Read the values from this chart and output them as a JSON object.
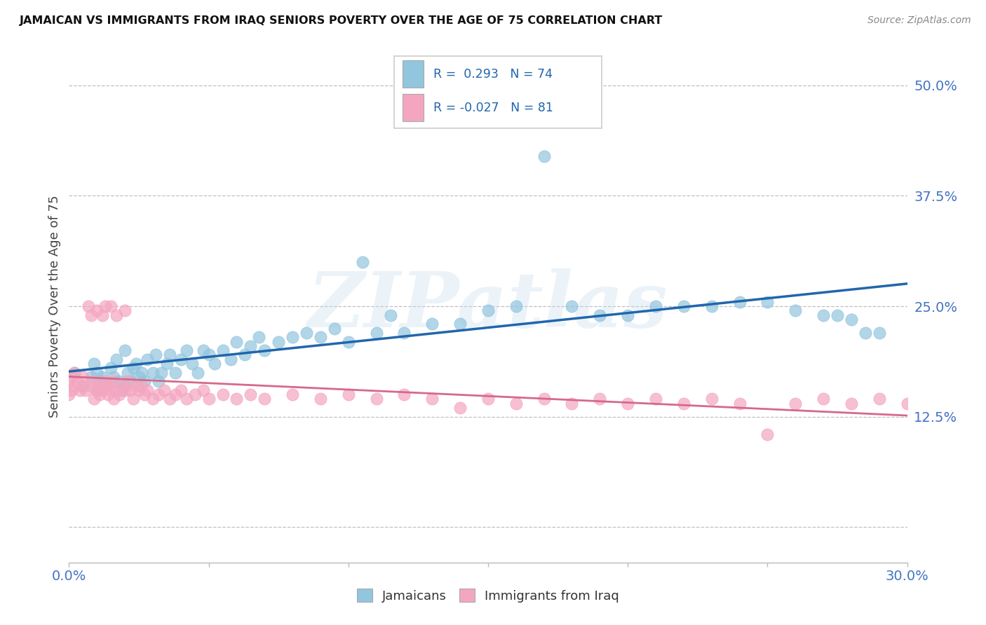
{
  "title": "JAMAICAN VS IMMIGRANTS FROM IRAQ SENIORS POVERTY OVER THE AGE OF 75 CORRELATION CHART",
  "source": "Source: ZipAtlas.com",
  "ylabel_label": "Seniors Poverty Over the Age of 75",
  "xlim": [
    0.0,
    0.3
  ],
  "ylim": [
    -0.04,
    0.54
  ],
  "r_jamaican": 0.293,
  "n_jamaican": 74,
  "r_iraqi": -0.027,
  "n_iraqi": 81,
  "jamaican_color": "#92c5de",
  "iraqi_color": "#f4a6c0",
  "trendline_jamaican_color": "#2166ac",
  "trendline_iraqi_color": "#d6698a",
  "watermark": "ZIPatlas",
  "legend_jamaican": "Jamaicans",
  "legend_iraqi": "Immigrants from Iraq",
  "jamaican_x": [
    0.002,
    0.005,
    0.008,
    0.009,
    0.01,
    0.01,
    0.011,
    0.012,
    0.013,
    0.015,
    0.016,
    0.017,
    0.018,
    0.019,
    0.02,
    0.02,
    0.021,
    0.022,
    0.023,
    0.024,
    0.025,
    0.026,
    0.027,
    0.028,
    0.03,
    0.031,
    0.032,
    0.033,
    0.035,
    0.036,
    0.038,
    0.04,
    0.042,
    0.044,
    0.046,
    0.048,
    0.05,
    0.052,
    0.055,
    0.058,
    0.06,
    0.063,
    0.065,
    0.068,
    0.07,
    0.075,
    0.08,
    0.085,
    0.09,
    0.095,
    0.1,
    0.105,
    0.11,
    0.115,
    0.12,
    0.13,
    0.14,
    0.15,
    0.16,
    0.17,
    0.18,
    0.19,
    0.2,
    0.21,
    0.22,
    0.23,
    0.24,
    0.25,
    0.26,
    0.27,
    0.275,
    0.28,
    0.285,
    0.29
  ],
  "jamaican_y": [
    0.175,
    0.16,
    0.17,
    0.185,
    0.155,
    0.175,
    0.165,
    0.17,
    0.16,
    0.18,
    0.17,
    0.19,
    0.165,
    0.155,
    0.16,
    0.2,
    0.175,
    0.165,
    0.18,
    0.185,
    0.17,
    0.175,
    0.165,
    0.19,
    0.175,
    0.195,
    0.165,
    0.175,
    0.185,
    0.195,
    0.175,
    0.19,
    0.2,
    0.185,
    0.175,
    0.2,
    0.195,
    0.185,
    0.2,
    0.19,
    0.21,
    0.195,
    0.205,
    0.215,
    0.2,
    0.21,
    0.215,
    0.22,
    0.215,
    0.225,
    0.21,
    0.3,
    0.22,
    0.24,
    0.22,
    0.23,
    0.23,
    0.245,
    0.25,
    0.42,
    0.25,
    0.24,
    0.24,
    0.25,
    0.25,
    0.25,
    0.255,
    0.255,
    0.245,
    0.24,
    0.24,
    0.235,
    0.22,
    0.22
  ],
  "iraqi_x": [
    0.0,
    0.0,
    0.001,
    0.001,
    0.002,
    0.002,
    0.003,
    0.004,
    0.005,
    0.005,
    0.006,
    0.007,
    0.008,
    0.008,
    0.009,
    0.009,
    0.01,
    0.01,
    0.011,
    0.011,
    0.012,
    0.012,
    0.013,
    0.013,
    0.014,
    0.014,
    0.015,
    0.015,
    0.016,
    0.016,
    0.017,
    0.017,
    0.018,
    0.019,
    0.02,
    0.02,
    0.021,
    0.022,
    0.023,
    0.024,
    0.025,
    0.026,
    0.027,
    0.028,
    0.03,
    0.032,
    0.034,
    0.036,
    0.038,
    0.04,
    0.042,
    0.045,
    0.048,
    0.05,
    0.055,
    0.06,
    0.065,
    0.07,
    0.08,
    0.09,
    0.1,
    0.11,
    0.12,
    0.13,
    0.14,
    0.15,
    0.16,
    0.17,
    0.18,
    0.19,
    0.2,
    0.21,
    0.22,
    0.23,
    0.24,
    0.25,
    0.26,
    0.27,
    0.28,
    0.29,
    0.3
  ],
  "iraqi_y": [
    0.15,
    0.165,
    0.155,
    0.17,
    0.16,
    0.175,
    0.165,
    0.155,
    0.16,
    0.17,
    0.155,
    0.25,
    0.24,
    0.16,
    0.145,
    0.165,
    0.155,
    0.245,
    0.16,
    0.15,
    0.24,
    0.155,
    0.25,
    0.165,
    0.15,
    0.16,
    0.25,
    0.155,
    0.145,
    0.165,
    0.155,
    0.24,
    0.15,
    0.16,
    0.155,
    0.245,
    0.165,
    0.155,
    0.145,
    0.16,
    0.155,
    0.16,
    0.15,
    0.155,
    0.145,
    0.15,
    0.155,
    0.145,
    0.15,
    0.155,
    0.145,
    0.15,
    0.155,
    0.145,
    0.15,
    0.145,
    0.15,
    0.145,
    0.15,
    0.145,
    0.15,
    0.145,
    0.15,
    0.145,
    0.135,
    0.145,
    0.14,
    0.145,
    0.14,
    0.145,
    0.14,
    0.145,
    0.14,
    0.145,
    0.14,
    0.105,
    0.14,
    0.145,
    0.14,
    0.145,
    0.14
  ]
}
